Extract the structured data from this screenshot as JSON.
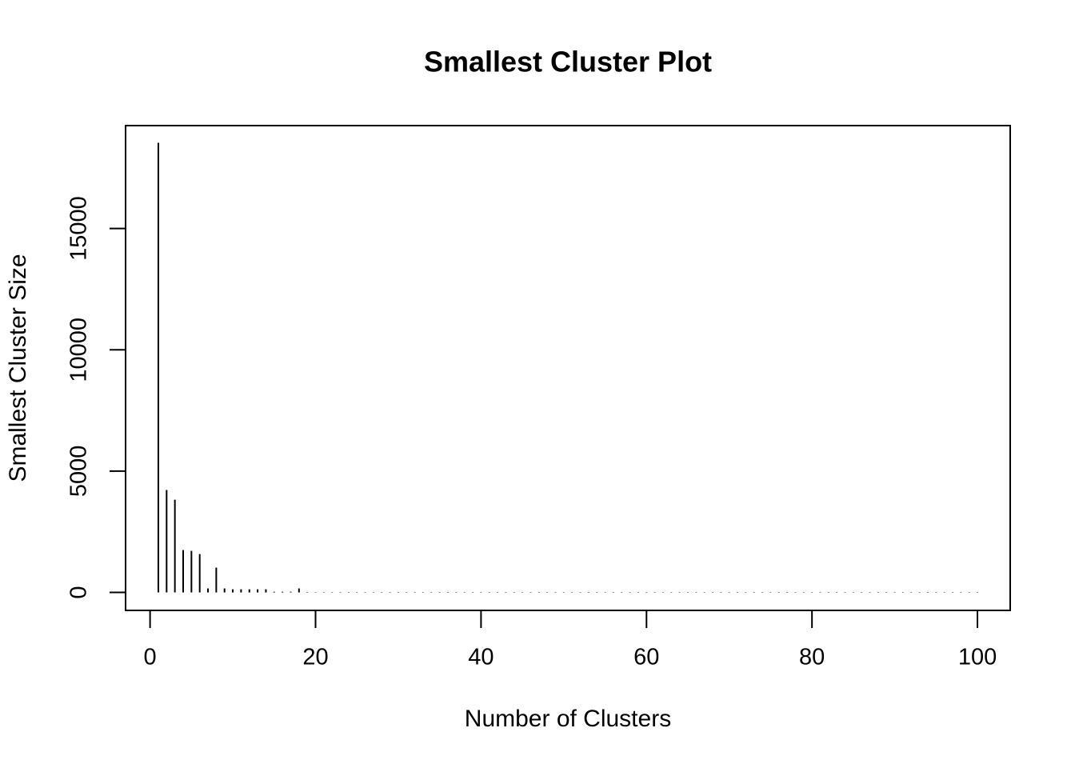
{
  "chart_data": {
    "type": "bar",
    "title": "Smallest Cluster Plot",
    "x_label": "Number of Clusters",
    "y_label": "Smallest Cluster Size",
    "x": [
      1,
      2,
      3,
      4,
      5,
      6,
      7,
      8,
      9,
      10,
      11,
      12,
      13,
      14,
      15,
      16,
      17,
      18,
      19,
      20,
      21,
      22,
      23,
      24,
      25,
      26,
      27,
      28,
      29,
      30,
      31,
      32,
      33,
      34,
      35,
      36,
      37,
      38,
      39,
      40,
      41,
      42,
      43,
      44,
      45,
      46,
      47,
      48,
      49,
      50,
      51,
      52,
      53,
      54,
      55,
      56,
      57,
      58,
      59,
      60,
      61,
      62,
      63,
      64,
      65,
      66,
      67,
      68,
      69,
      70,
      71,
      72,
      73,
      74,
      75,
      76,
      77,
      78,
      79,
      80,
      81,
      82,
      83,
      84,
      85,
      86,
      87,
      88,
      89,
      90,
      91,
      92,
      93,
      94,
      95,
      96,
      97,
      98,
      99,
      100
    ],
    "values": [
      18530,
      4220,
      3824,
      1747,
      1714,
      1582,
      165,
      1022,
      165,
      130,
      130,
      130,
      130,
      130,
      30,
      30,
      30,
      165,
      15,
      15,
      15,
      15,
      15,
      15,
      15,
      15,
      15,
      15,
      15,
      15,
      15,
      15,
      15,
      15,
      15,
      15,
      15,
      15,
      15,
      15,
      15,
      15,
      15,
      15,
      15,
      15,
      15,
      15,
      15,
      15,
      15,
      15,
      15,
      15,
      15,
      15,
      15,
      15,
      15,
      15,
      15,
      15,
      15,
      15,
      15,
      15,
      15,
      15,
      15,
      15,
      15,
      15,
      15,
      15,
      15,
      15,
      15,
      15,
      15,
      15,
      15,
      15,
      15,
      15,
      15,
      15,
      15,
      15,
      15,
      15,
      15,
      15,
      15,
      15,
      15,
      15,
      15,
      15,
      15,
      15
    ],
    "color": "#000000",
    "xlim": [
      -2.96,
      103.96
    ],
    "xticks": [
      0,
      20,
      40,
      60,
      80,
      100
    ],
    "ylim": [
      -740,
      19240
    ],
    "yticks": [
      0,
      5000,
      10000,
      15000
    ]
  }
}
